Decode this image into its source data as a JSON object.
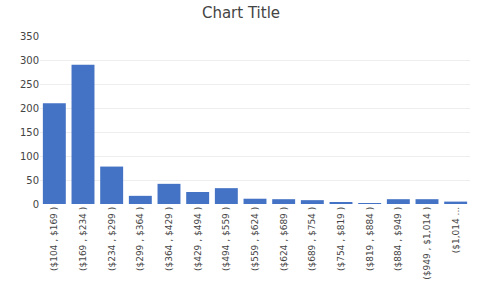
{
  "chart_data": {
    "type": "bar",
    "title": "Chart Title",
    "categories": [
      "($104 , $169 )",
      "($169 , $234 )",
      "($234 , $299 )",
      "($299 , $364 )",
      "($364 , $429 )",
      "($429 , $494 )",
      "($494 , $559 )",
      "($559 , $624 )",
      "($624 , $689 )",
      "($689 , $754 )",
      "($754 , $819 )",
      "($819 , $884 )",
      "($884 , $949 )",
      "($949 , $1,014 )",
      "($1,014 ..."
    ],
    "values": [
      210,
      290,
      78,
      17,
      42,
      25,
      33,
      11,
      10,
      8,
      3,
      2,
      10,
      10,
      5
    ],
    "color": "#4472C4",
    "ylim": [
      0,
      350
    ],
    "yticks": [
      0,
      50,
      100,
      150,
      200,
      250,
      300,
      350
    ],
    "grid": true
  }
}
